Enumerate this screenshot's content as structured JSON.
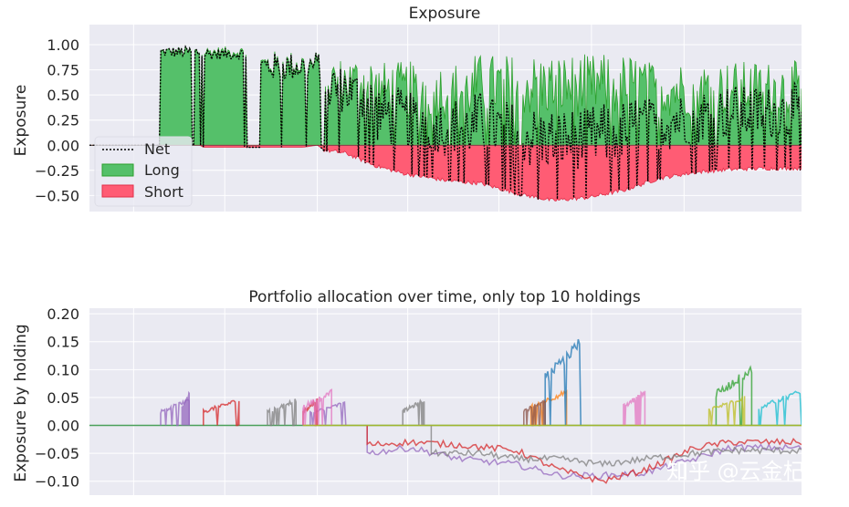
{
  "chart_data": [
    {
      "type": "area",
      "title": "Exposure",
      "ylabel": "Exposure",
      "xlabel": "",
      "ylim": [
        -0.66,
        1.2
      ],
      "yticks": [
        "1.00",
        "0.75",
        "0.50",
        "0.25",
        "0.00",
        "−0.25",
        "−0.50"
      ],
      "yticks_values": [
        1.0,
        0.75,
        0.5,
        0.25,
        0.0,
        -0.25,
        -0.5
      ],
      "grid": true,
      "legend_position": "lower-left",
      "series": [
        {
          "name": "Net",
          "style": "dotted",
          "color": "#000000"
        },
        {
          "name": "Long",
          "color": "#2ca02c"
        },
        {
          "name": "Short",
          "color": "#ff2d55"
        }
      ],
      "long_segments": [
        {
          "start": 0.1,
          "end": 0.22,
          "base": 0.92,
          "amp": 0.08
        },
        {
          "start": 0.24,
          "end": 0.325,
          "base": 0.78,
          "amp": 0.2
        },
        {
          "start": 0.33,
          "end": 0.4,
          "base": 0.6,
          "amp": 0.35
        },
        {
          "start": 0.4,
          "end": 0.54,
          "base": 0.5,
          "amp": 0.42
        },
        {
          "start": 0.54,
          "end": 0.78,
          "base": 0.55,
          "amp": 0.45
        },
        {
          "start": 0.78,
          "end": 1.0,
          "base": 0.52,
          "amp": 0.4
        }
      ],
      "short_profile": [
        {
          "x": 0.0,
          "y": 0.0
        },
        {
          "x": 0.155,
          "y": 0.0
        },
        {
          "x": 0.16,
          "y": -0.02
        },
        {
          "x": 0.3,
          "y": -0.02
        },
        {
          "x": 0.32,
          "y": 0.0
        },
        {
          "x": 0.33,
          "y": -0.05
        },
        {
          "x": 0.36,
          "y": -0.08
        },
        {
          "x": 0.4,
          "y": -0.2
        },
        {
          "x": 0.44,
          "y": -0.28
        },
        {
          "x": 0.5,
          "y": -0.35
        },
        {
          "x": 0.55,
          "y": -0.38
        },
        {
          "x": 0.6,
          "y": -0.48
        },
        {
          "x": 0.65,
          "y": -0.55
        },
        {
          "x": 0.7,
          "y": -0.52
        },
        {
          "x": 0.75,
          "y": -0.45
        },
        {
          "x": 0.8,
          "y": -0.33
        },
        {
          "x": 0.85,
          "y": -0.27
        },
        {
          "x": 0.9,
          "y": -0.24
        },
        {
          "x": 0.95,
          "y": -0.23
        },
        {
          "x": 1.0,
          "y": -0.23
        }
      ]
    },
    {
      "type": "line",
      "title": "Portfolio allocation over time, only top 10 holdings",
      "ylabel": "Exposure by holding",
      "xlabel": "",
      "ylim": [
        -0.125,
        0.21
      ],
      "yticks": [
        "0.20",
        "0.15",
        "0.10",
        "0.05",
        "0.00",
        "−0.05",
        "−0.10"
      ],
      "yticks_values": [
        0.2,
        0.15,
        0.1,
        0.05,
        0.0,
        -0.05,
        -0.1
      ],
      "grid": true,
      "series": [
        {
          "color": "#9467bd",
          "segments": [
            [
              0.1,
              0.14,
              0.045
            ],
            [
              0.13,
              0.14,
              0.055
            ],
            [
              0.31,
              0.36,
              0.04
            ]
          ]
        },
        {
          "color": "#d62728",
          "segments": [
            [
              0.16,
              0.21,
              0.045
            ],
            [
              0.3,
              0.32,
              0.045
            ]
          ]
        },
        {
          "color": "#7f7f7f",
          "segments": [
            [
              0.25,
              0.29,
              0.045
            ],
            [
              0.44,
              0.47,
              0.045
            ]
          ]
        },
        {
          "color": "#e377c2",
          "segments": [
            [
              0.3,
              0.34,
              0.06
            ],
            [
              0.75,
              0.78,
              0.06
            ]
          ]
        },
        {
          "color": "#ff7f0e",
          "segments": [
            [
              0.62,
              0.67,
              0.06
            ]
          ]
        },
        {
          "color": "#1f77b4",
          "segments": [
            [
              0.64,
              0.69,
              0.15
            ]
          ]
        },
        {
          "color": "#8c564b",
          "segments": [
            [
              0.61,
              0.64,
              0.045
            ]
          ]
        },
        {
          "color": "#2ca02c",
          "segments": [
            [
              0.88,
              0.93,
              0.1
            ]
          ]
        },
        {
          "color": "#bcbd22",
          "segments": [
            [
              0.87,
              0.92,
              0.05
            ]
          ]
        },
        {
          "color": "#17becf",
          "segments": [
            [
              0.94,
              1.0,
              0.06
            ]
          ]
        }
      ],
      "short_series": [
        {
          "color": "#9467bd",
          "profile": [
            [
              0.39,
              -0.05
            ],
            [
              0.45,
              -0.04
            ],
            [
              0.52,
              -0.06
            ],
            [
              0.6,
              -0.07
            ],
            [
              0.66,
              -0.09
            ],
            [
              0.72,
              -0.09
            ],
            [
              0.78,
              -0.085
            ],
            [
              0.85,
              -0.06
            ],
            [
              0.9,
              -0.04
            ],
            [
              1.0,
              -0.04
            ]
          ]
        },
        {
          "color": "#d62728",
          "profile": [
            [
              0.39,
              -0.035
            ],
            [
              0.45,
              -0.03
            ],
            [
              0.52,
              -0.035
            ],
            [
              0.6,
              -0.045
            ],
            [
              0.66,
              -0.08
            ],
            [
              0.72,
              -0.1
            ],
            [
              0.78,
              -0.08
            ],
            [
              0.85,
              -0.04
            ],
            [
              0.9,
              -0.03
            ],
            [
              1.0,
              -0.03
            ]
          ]
        },
        {
          "color": "#7f7f7f",
          "profile": [
            [
              0.48,
              -0.05
            ],
            [
              0.55,
              -0.05
            ],
            [
              0.6,
              -0.06
            ],
            [
              0.66,
              -0.06
            ],
            [
              0.72,
              -0.07
            ],
            [
              0.78,
              -0.06
            ],
            [
              0.85,
              -0.05
            ],
            [
              0.9,
              -0.045
            ],
            [
              1.0,
              -0.045
            ]
          ]
        },
        {
          "color": "#bcbd22",
          "profile": [
            [
              0.3,
              0.0
            ],
            [
              0.4,
              0.0
            ],
            [
              0.6,
              0.0
            ],
            [
              0.8,
              0.0
            ],
            [
              1.0,
              0.0
            ]
          ]
        }
      ]
    }
  ],
  "watermark": "知乎 @云金杞"
}
